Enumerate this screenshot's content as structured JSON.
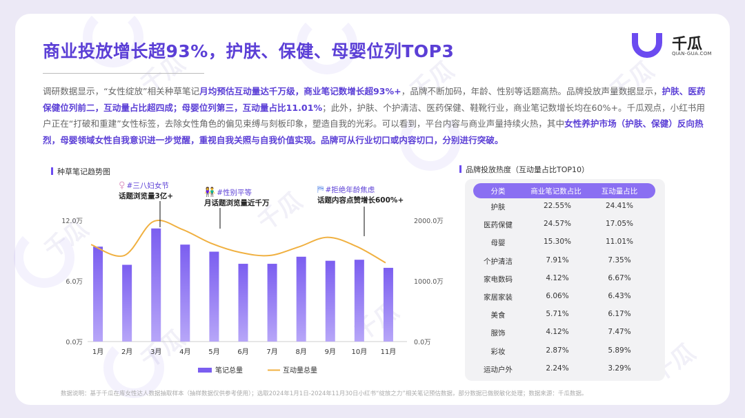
{
  "header": {
    "title": "商业投放增长超93%，护肤、保健、母婴位列TOP3",
    "logo_name": "千瓜",
    "logo_domain": "QIAN-GUA.COM"
  },
  "summary": [
    {
      "t": "调研数据显示，“女性绽放”相关种草笔记",
      "h": false
    },
    {
      "t": "月均预估互动量达千万级，商业笔记数增长超93%+",
      "h": true
    },
    {
      "t": "，品牌不断加码，年龄、性别等话题高热。品牌投放声量数据显示，",
      "h": false
    },
    {
      "t": "护肤、医药保健位列前二，互动量占比超四成；母婴位列第三，互动量占比11.01%",
      "h": true
    },
    {
      "t": "；此外，护肤、个护清洁、医药保健、鞋靴行业，商业笔记数增长均在60%+。千瓜观点，小红书用户正在“打破和重建”女性标签，去除女性角色的偏见束缚与刻板印象，塑造自我的光彩。可以看到，平台内容与商业声量持续火热，其中",
      "h": false
    },
    {
      "t": "女性养护市场（护肤、保健）反向热烈，母婴领域女性自我意识进一步觉醒，重视自我关照与自我价值实现。品牌可从行业切口或内容切口，分别进行突破。",
      "h": true
    }
  ],
  "left_section_title": "种草笔记趋势图",
  "right_section_title": "品牌投放热度（互动量占比TOP10）",
  "callouts": [
    {
      "tag": "#三八妇女节",
      "desc": "话题浏览量3亿+",
      "icon": "female-symbol-icon",
      "glyph": "♀",
      "color": "#e0a0c8"
    },
    {
      "tag": "#性别平等",
      "desc": "月话题浏览量近千万",
      "icon": "people-icon",
      "glyph": "👫",
      "color": "#f0b030"
    },
    {
      "tag": "#拒绝年龄焦虑",
      "desc": "话题内容点赞增长600%+",
      "icon": "signpost-icon",
      "glyph": "⛿",
      "color": "#5a8ae8"
    }
  ],
  "chart_data": {
    "type": "bar+line",
    "categories": [
      "1月",
      "2月",
      "3月",
      "4月",
      "5月",
      "6月",
      "7月",
      "8月",
      "9月",
      "10月",
      "11月"
    ],
    "series": [
      {
        "name": "笔记总量",
        "type": "bar",
        "axis": "left",
        "values": [
          9.4,
          7.6,
          11.2,
          9.6,
          8.9,
          7.7,
          7.7,
          8.4,
          8.0,
          8.1,
          7.3
        ]
      },
      {
        "name": "互动量总量",
        "type": "line",
        "axis": "right",
        "values": [
          1600,
          1420,
          1980,
          1850,
          1620,
          1470,
          1420,
          1560,
          1720,
          1570,
          1300
        ]
      }
    ],
    "left_axis": {
      "ticks": [
        "0.0万",
        "6.0万",
        "12.0万"
      ],
      "ylim": [
        0,
        12
      ]
    },
    "right_axis": {
      "ticks": [
        "0.0万",
        "1000.0万",
        "2000.0万"
      ],
      "ylim": [
        0,
        2000
      ]
    },
    "colors": {
      "bar": "#7b5ef0",
      "line": "#f0b040"
    },
    "legend_position": "bottom"
  },
  "table": {
    "headers": [
      "分类",
      "商业笔记数占比",
      "互动量占比"
    ],
    "rows": [
      [
        "护肤",
        "22.55%",
        "24.41%"
      ],
      [
        "医药保健",
        "24.57%",
        "17.05%"
      ],
      [
        "母婴",
        "15.30%",
        "11.01%"
      ],
      [
        "个护清洁",
        "7.91%",
        "7.35%"
      ],
      [
        "家电数码",
        "4.12%",
        "6.67%"
      ],
      [
        "家居家装",
        "6.06%",
        "6.43%"
      ],
      [
        "美食",
        "5.71%",
        "6.17%"
      ],
      [
        "服饰",
        "4.12%",
        "7.47%"
      ],
      [
        "彩妆",
        "2.87%",
        "5.89%"
      ],
      [
        "运动户外",
        "2.24%",
        "3.29%"
      ]
    ]
  },
  "footnote": "数据说明：基于千瓜在库女性达人数据抽取样本（抽样数据仅供参考使用）；选取2024年1月1日-2024年11月30日小红书“绽放之力”相关笔记预估数据，部分数据已做脱敏化处理；数据来源：千瓜数据。"
}
